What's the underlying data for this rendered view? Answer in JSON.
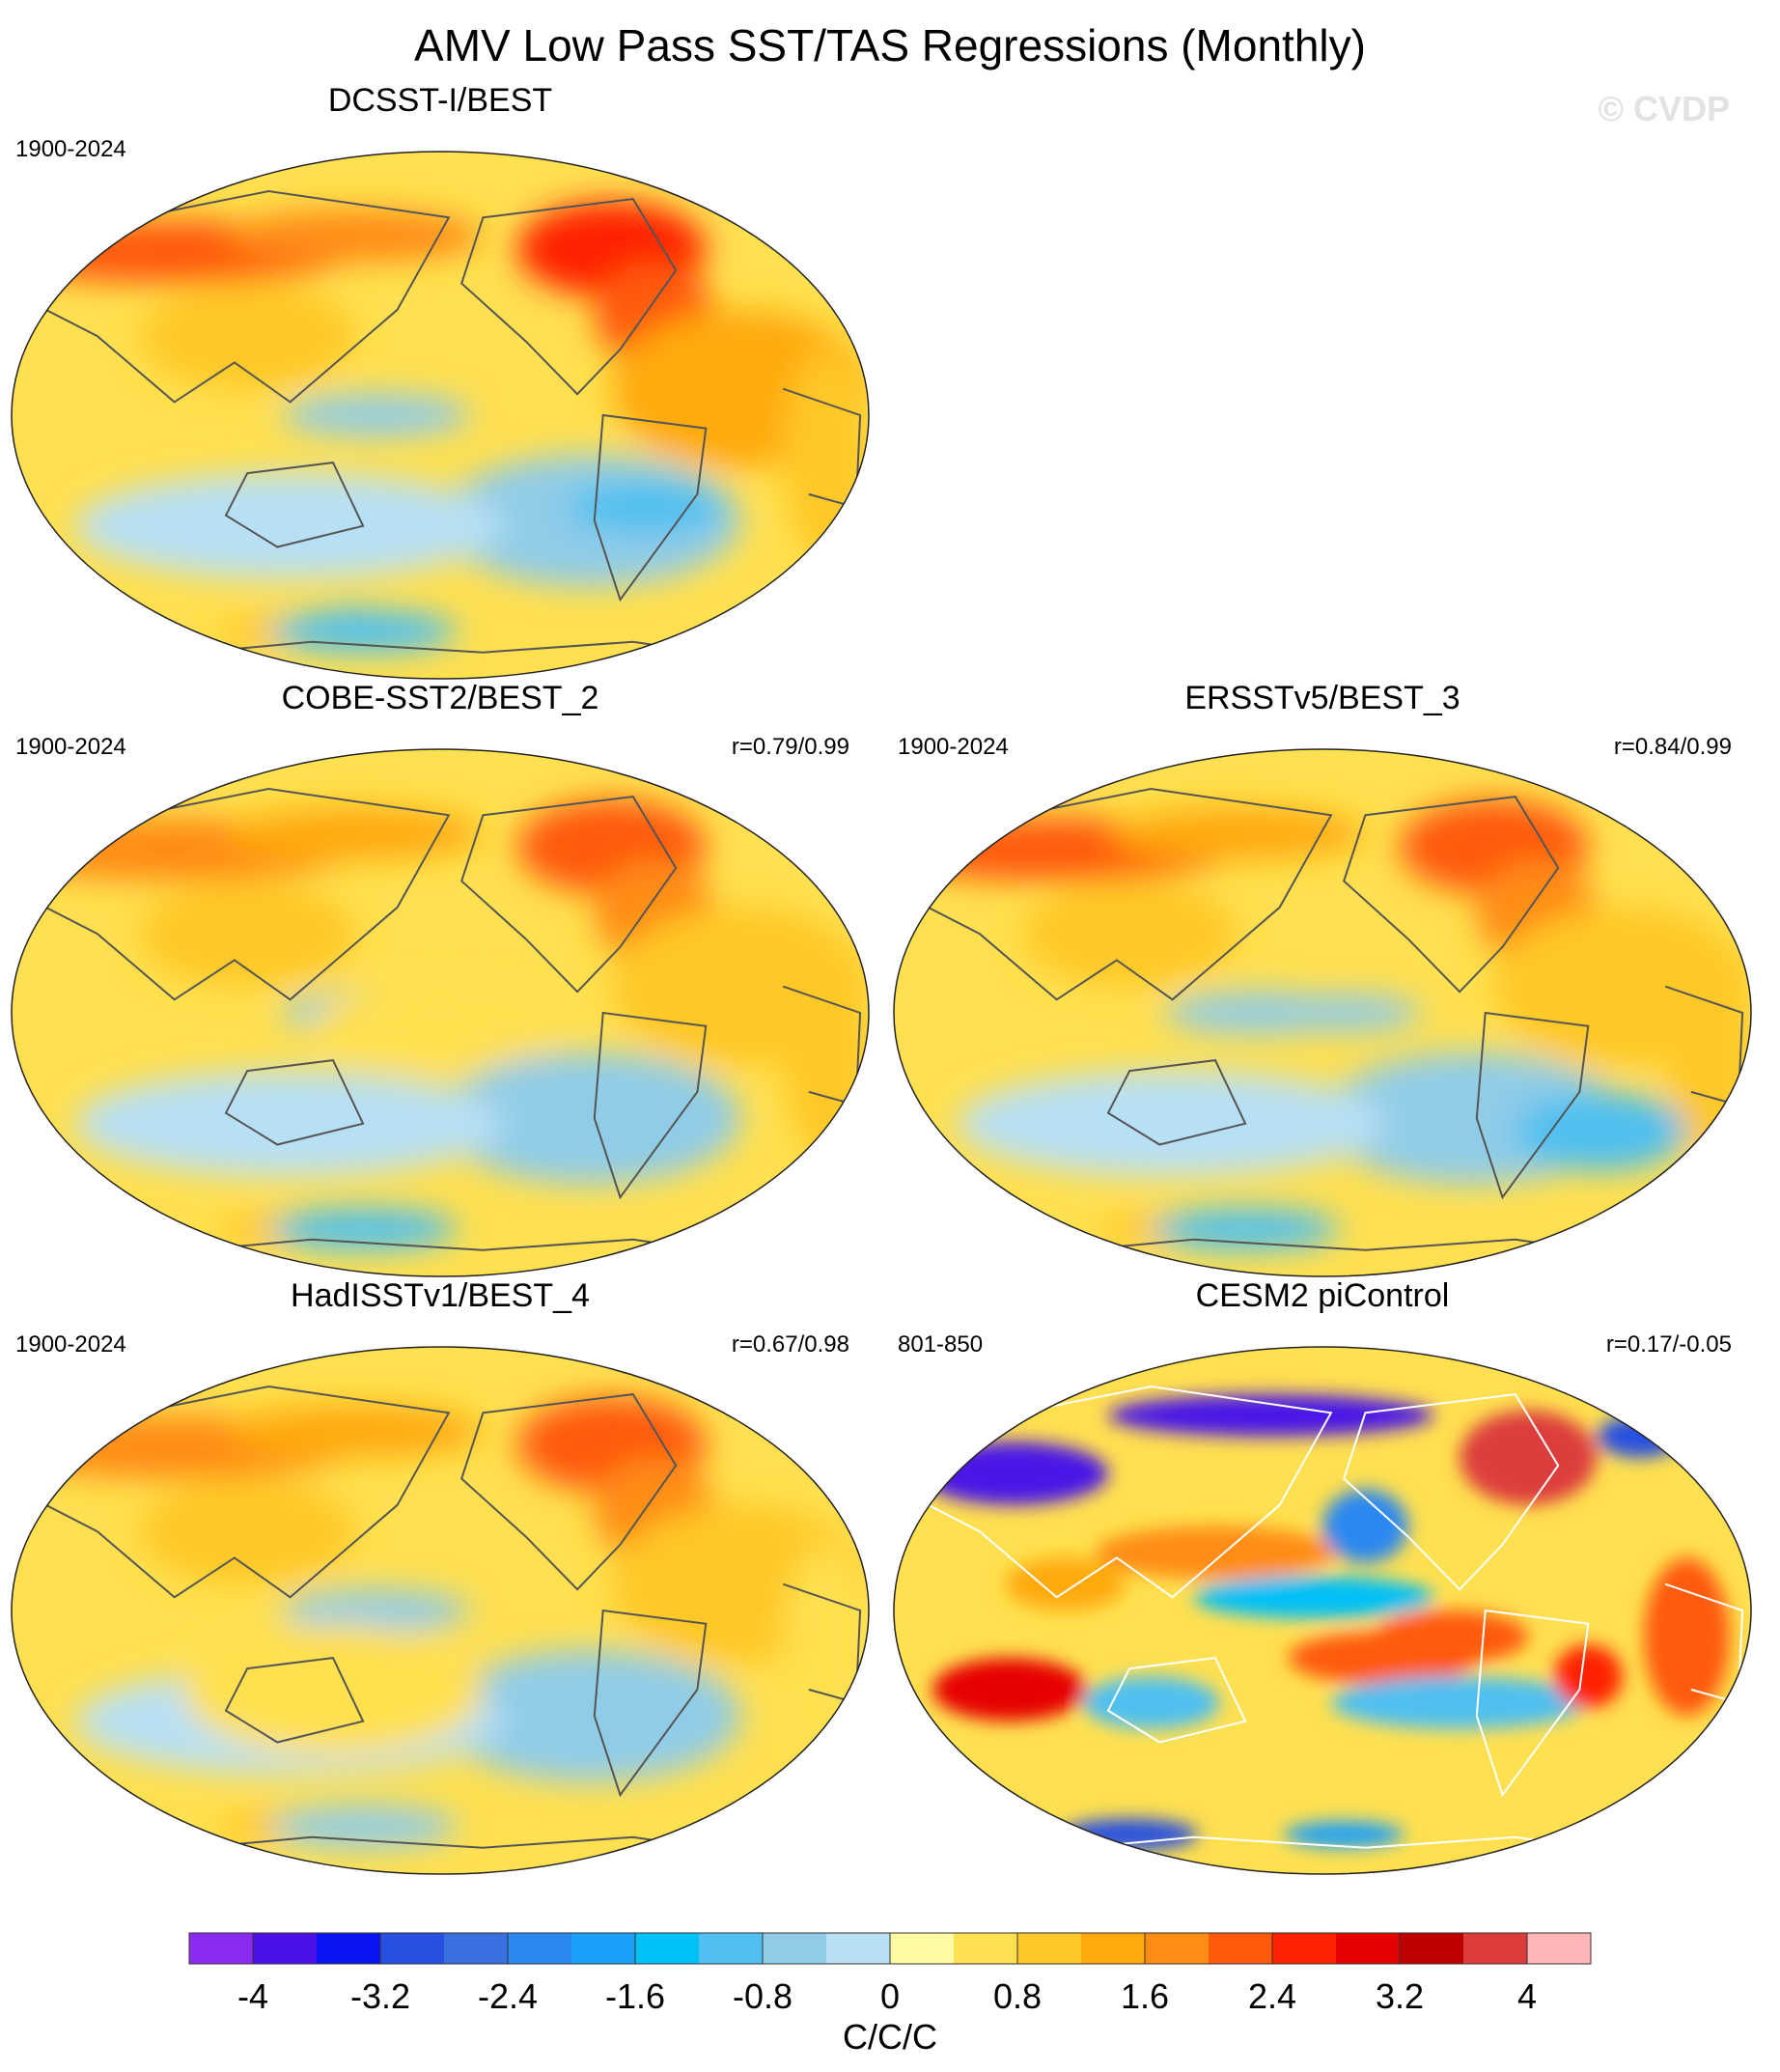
{
  "title": "AMV Low Pass SST/TAS Regressions (Monthly)",
  "watermark": "© CVDP",
  "panels": [
    {
      "title": "DCSST-I/BEST",
      "period": "1900-2024",
      "corr": ""
    },
    {
      "title": "COBE-SST2/BEST_2",
      "period": "1900-2024",
      "corr": "r=0.79/0.99"
    },
    {
      "title": "ERSSTv5/BEST_3",
      "period": "1900-2024",
      "corr": "r=0.84/0.99"
    },
    {
      "title": "HadISSTv1/BEST_4",
      "period": "1900-2024",
      "corr": "r=0.67/0.98"
    },
    {
      "title": "CESM2 piControl",
      "period": "801-850",
      "corr": "r=0.17/-0.05"
    }
  ],
  "chart_data": {
    "type": "heatmap",
    "projection": "Robinson (global map)",
    "variable": "Regression of low-pass SST/TAS onto AMV index",
    "colorbar": {
      "units": "C/C/C",
      "levels": [
        -4.4,
        -4,
        -3.6,
        -3.2,
        -2.8,
        -2.4,
        -2,
        -1.6,
        -1.2,
        -0.8,
        -0.4,
        0,
        0.4,
        0.8,
        1.2,
        1.6,
        2,
        2.4,
        2.8,
        3.2,
        3.6,
        4,
        4.4
      ],
      "tick_values": [
        -4,
        -3.2,
        -2.4,
        -1.6,
        -0.8,
        0,
        0.8,
        1.6,
        2.4,
        3.2,
        4
      ],
      "tick_labels": [
        "-4",
        "-3.2",
        "-2.4",
        "-1.6",
        "-0.8",
        "0",
        "0.8",
        "1.6",
        "2.4",
        "3.2",
        "4"
      ],
      "colors": [
        "#8b2bf0",
        "#4a12e6",
        "#0a14f0",
        "#2850e0",
        "#3a6fe0",
        "#2a88f0",
        "#1aa0f8",
        "#00c0f8",
        "#50c0f0",
        "#90cce8",
        "#b8e0f4",
        "#fffaa4",
        "#ffe050",
        "#ffc828",
        "#ffaa0a",
        "#ff8c14",
        "#ff5a0a",
        "#ff2200",
        "#e60000",
        "#c00000",
        "#dc3c3c",
        "#ffb4b8"
      ]
    }
  }
}
